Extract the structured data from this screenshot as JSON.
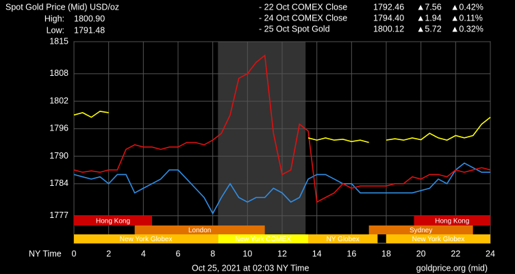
{
  "chart_data": {
    "type": "line",
    "title": "Spot Gold Price (Mid) USD/oz",
    "stats": [
      {
        "label": "High:",
        "value": "1800.90"
      },
      {
        "label": "Low:",
        "value": "1791.48"
      }
    ],
    "legend": [
      {
        "name": "- 22 Oct COMEX Close",
        "close": "1792.46",
        "change": "▲7.56",
        "pct": "▲0.42%",
        "color": "#2f8fe8"
      },
      {
        "name": "- 24 Oct COMEX Close",
        "close": "1794.40",
        "change": "▲1.94",
        "pct": "▲0.11%",
        "color": "#e01010"
      },
      {
        "name": "- 25 Oct Spot Gold",
        "close": "1800.12",
        "change": "▲5.72",
        "pct": "▲0.32%",
        "color": "#ffff00"
      }
    ],
    "x_label": "NY Time",
    "footer_left": "Oct 25, 2021 at 02:03 NY Time",
    "footer_right": "goldprice.org (mid)",
    "xlim": [
      0,
      24
    ],
    "xticks": [
      0,
      2,
      4,
      6,
      8,
      10,
      12,
      14,
      16,
      18,
      20,
      22,
      24
    ],
    "ylim": [
      1771,
      1815
    ],
    "yticks": [
      1777,
      1784,
      1790,
      1796,
      1802,
      1808,
      1815
    ],
    "grid": true,
    "shaded_range": [
      8.3,
      13.35
    ],
    "x": [
      0,
      0.5,
      1,
      1.5,
      2,
      2.5,
      3,
      3.5,
      4,
      4.5,
      5,
      5.5,
      6,
      6.5,
      7,
      7.5,
      8,
      8.5,
      9,
      9.5,
      10,
      10.5,
      11,
      11.5,
      12,
      12.5,
      13,
      13.5,
      14,
      14.5,
      15,
      15.5,
      16,
      16.5,
      17,
      17.5,
      18,
      18.5,
      19,
      19.5,
      20,
      20.5,
      21,
      21.5,
      22,
      22.5,
      23,
      23.5,
      24
    ],
    "series": [
      {
        "name": "22 Oct COMEX Close",
        "color": "#2f8fe8",
        "values": [
          1786,
          1785.5,
          1785,
          1785.5,
          1784,
          1786,
          1786,
          1782,
          1783,
          1784,
          1785,
          1787,
          1787,
          1785,
          1783,
          1781,
          1777.5,
          1781,
          1784,
          1781,
          1780,
          1781,
          1781,
          1783,
          1782,
          1780,
          1781,
          1785,
          1786,
          1786,
          1785,
          1784,
          1784,
          1782,
          1782,
          1782,
          1782,
          1782,
          1782,
          1782,
          1782.5,
          1783,
          1785,
          1784,
          1787,
          1788.5,
          1787.5,
          1786.5,
          1786.5
        ]
      },
      {
        "name": "24 Oct COMEX Close",
        "color": "#e01010",
        "values": [
          1787,
          1786.5,
          1786.8,
          1786.5,
          1787,
          1787,
          1791.5,
          1792.5,
          1792,
          1792,
          1791.5,
          1792,
          1792,
          1793,
          1793,
          1792.5,
          1793.5,
          1795,
          1799,
          1807,
          1808,
          1810.5,
          1812,
          1795,
          1786,
          1787,
          1797,
          1795.5,
          1780,
          1781,
          1782,
          1784,
          1783,
          1783.5,
          1783.5,
          1783.5,
          1783.5,
          1784,
          1784,
          1785.5,
          1785,
          1786,
          1786,
          1785.5,
          1787,
          1786.5,
          1787,
          1787.5,
          1787
        ]
      },
      {
        "name": "25 Oct Spot Gold",
        "color": "#ffff00",
        "values": [
          1799,
          1799.5,
          1798.5,
          1799.8,
          1799.5,
          null,
          null,
          null,
          null,
          null,
          null,
          null,
          null,
          null,
          null,
          null,
          null,
          null,
          null,
          null,
          null,
          null,
          null,
          null,
          null,
          null,
          null,
          1794,
          1793.5,
          1794,
          1793.5,
          1793.7,
          1793.2,
          1793.5,
          1793,
          null,
          1793.5,
          1793.8,
          1793.5,
          1794,
          1793.6,
          1795,
          1794,
          1793.5,
          1794.5,
          1794,
          1794.5,
          1797,
          1798.5
        ]
      }
    ],
    "session_rows": [
      [
        {
          "label": "Hong Kong",
          "start": 0,
          "end": 4.5,
          "color": "#cc0000"
        },
        {
          "label": "Hong Kong",
          "start": 19.6,
          "end": 24,
          "color": "#cc0000"
        }
      ],
      [
        {
          "label": "London",
          "start": 3.5,
          "end": 11,
          "color": "#e07000"
        },
        {
          "label": "Sydney",
          "start": 17,
          "end": 23,
          "color": "#e07000"
        }
      ],
      [
        {
          "label": "New York Globex",
          "start": 0,
          "end": 8.3,
          "color": "#ffc000"
        },
        {
          "label": "New York COMEX",
          "start": 8.3,
          "end": 13.5,
          "color": "#ffff00"
        },
        {
          "label": "NY Globex",
          "start": 13.5,
          "end": 17.5,
          "color": "#ffc000"
        },
        {
          "label": "New York Globex",
          "start": 18,
          "end": 24,
          "color": "#ffc000"
        }
      ]
    ]
  }
}
